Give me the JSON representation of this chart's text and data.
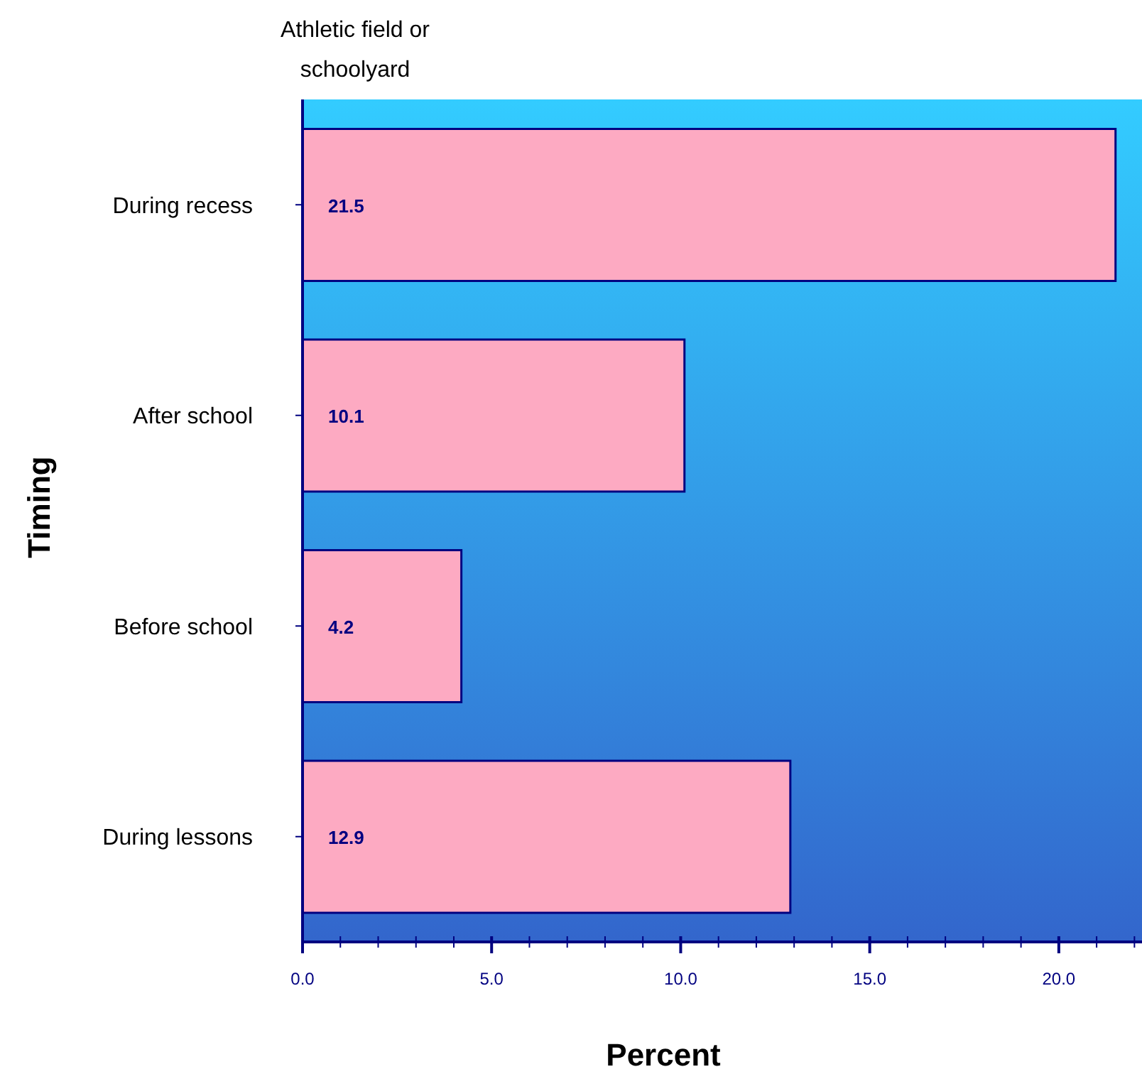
{
  "chart_data": {
    "type": "bar",
    "orientation": "horizontal",
    "title": "Athletic field or schoolyard",
    "xlabel": "Percent",
    "ylabel": "Timing",
    "categories": [
      "During recess",
      "After school",
      "Before school",
      "During lessons"
    ],
    "values": [
      21.5,
      10.1,
      4.2,
      12.9
    ],
    "color": "#fdaac2",
    "data_labels": true,
    "xlim": [
      0,
      22.2
    ],
    "xticks": [
      {
        "value": 0,
        "label": "0.0"
      },
      {
        "value": 1,
        "label": null
      },
      {
        "value": 2,
        "label": null
      },
      {
        "value": 3,
        "label": null
      },
      {
        "value": 4,
        "label": null
      },
      {
        "value": 5,
        "label": "5.0"
      },
      {
        "value": 6,
        "label": null
      },
      {
        "value": 7,
        "label": null
      },
      {
        "value": 8,
        "label": null
      },
      {
        "value": 9,
        "label": null
      },
      {
        "value": 10,
        "label": "10.0"
      },
      {
        "value": 11,
        "label": null
      },
      {
        "value": 12,
        "label": null
      },
      {
        "value": 13,
        "label": null
      },
      {
        "value": 14,
        "label": null
      },
      {
        "value": 15,
        "label": "15.0"
      },
      {
        "value": 16,
        "label": null
      },
      {
        "value": 17,
        "label": null
      },
      {
        "value": 18,
        "label": null
      },
      {
        "value": 19,
        "label": null
      },
      {
        "value": 20,
        "label": "20.0"
      },
      {
        "value": 21,
        "label": null
      },
      {
        "value": 22,
        "label": null
      }
    ]
  }
}
